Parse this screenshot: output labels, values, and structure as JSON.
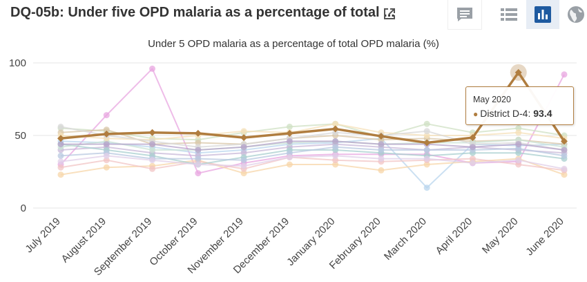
{
  "header": {
    "title": "DQ-05b: Under five OPD malaria as a percentage of total ...",
    "icons": [
      "open-external-icon",
      "comment-icon",
      "table-view-icon",
      "chart-view-icon",
      "map-view-icon"
    ]
  },
  "colors": {
    "highlight": "#b07d3f",
    "active_view_bg": "#e7edf5",
    "active_view_icon": "#1e5aa0"
  },
  "chart_data": {
    "type": "line",
    "title": "Under 5 OPD malaria as a percentage of total OPD malaria (%)",
    "xlabel": "",
    "ylabel": "",
    "ylim": [
      0,
      100
    ],
    "yticks": [
      0,
      50,
      100
    ],
    "grid": true,
    "categories": [
      "July 2019",
      "August 2019",
      "September 2019",
      "October 2019",
      "November 2019",
      "December 2019",
      "January 2020",
      "February 2020",
      "March 2020",
      "April 2020",
      "May 2020",
      "June 2020"
    ],
    "series": [
      {
        "name": "District D-4",
        "color": "#b07d3f",
        "highlighted": true,
        "values": [
          48,
          51,
          52,
          51.5,
          48.5,
          51.5,
          54.5,
          49.5,
          45,
          48.5,
          93.4,
          46
        ]
      },
      {
        "color": "#e8a6e0",
        "values": [
          30,
          64,
          96,
          24,
          31,
          36,
          37,
          37,
          37,
          31,
          32,
          92
        ]
      },
      {
        "color": "#b9d6ee",
        "values": [
          46,
          45,
          42,
          38,
          40,
          44,
          45,
          48,
          14,
          44,
          43,
          44
        ]
      },
      {
        "color": "#f7d6a8",
        "values": [
          23,
          28,
          29,
          33,
          24,
          30,
          30,
          26,
          30,
          32,
          34,
          23
        ]
      },
      {
        "color": "#cfe0c3",
        "values": [
          55,
          53,
          48,
          47,
          52,
          56,
          58,
          49,
          58,
          52,
          55,
          50
        ]
      },
      {
        "color": "#c8b8d8",
        "values": [
          40,
          42,
          38,
          36,
          38,
          42,
          44,
          42,
          40,
          42,
          40,
          38
        ]
      },
      {
        "color": "#f2c4c4",
        "values": [
          28,
          33,
          27,
          32,
          27,
          35,
          33,
          32,
          33,
          34,
          30,
          26
        ]
      },
      {
        "color": "#a8cfcf",
        "values": [
          44,
          40,
          36,
          30,
          35,
          40,
          40,
          38,
          36,
          38,
          38,
          34
        ]
      },
      {
        "color": "#d9c7a8",
        "values": [
          52,
          54,
          44,
          45,
          44,
          48,
          50,
          47,
          48,
          46,
          47,
          44
        ]
      },
      {
        "color": "#b8c8e0",
        "values": [
          36,
          38,
          34,
          34,
          33,
          38,
          42,
          40,
          40,
          40,
          41,
          36
        ]
      },
      {
        "color": "#e0cfe8",
        "values": [
          32,
          36,
          33,
          30,
          29,
          35,
          36,
          34,
          34,
          31,
          33,
          27
        ]
      },
      {
        "color": "#c9e3d6",
        "values": [
          42,
          46,
          40,
          40,
          42,
          45,
          46,
          44,
          45,
          45,
          47,
          42
        ]
      },
      {
        "color": "#f5e0b8",
        "values": [
          50,
          48,
          47,
          50,
          53,
          52,
          58,
          52,
          50,
          50,
          52,
          48
        ]
      },
      {
        "color": "#d8d8d8",
        "values": [
          56,
          50,
          46,
          42,
          44,
          48,
          52,
          50,
          53,
          44,
          45,
          40
        ]
      },
      {
        "color": "#b5a3c9",
        "values": [
          44,
          44,
          44,
          40,
          42,
          46,
          46,
          44,
          44,
          42,
          44,
          40
        ]
      }
    ],
    "tooltip": {
      "category": "May 2020",
      "series": "District D-4",
      "value": "93.4"
    }
  }
}
